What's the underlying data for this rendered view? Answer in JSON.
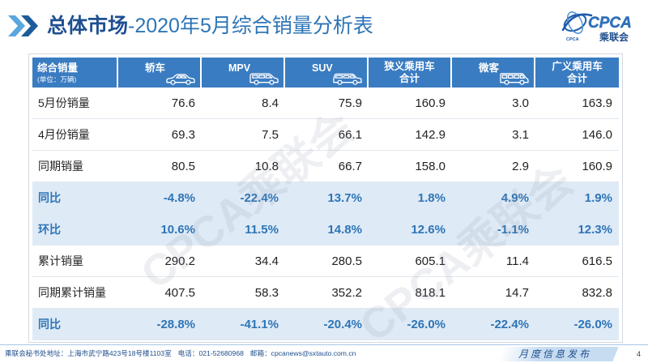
{
  "header": {
    "title_main": "总体市场",
    "title_sub": "-2020年5月综合销量分析表",
    "chevron_icon": "double-chevron-right-icon"
  },
  "logo": {
    "icon": "cpca-globe-icon",
    "name": "CPCA",
    "cn_name": "乘联会",
    "small_text": "CPCA"
  },
  "table": {
    "corner": {
      "label": "综合销量",
      "unit": "(单位：万辆)"
    },
    "columns": [
      {
        "lines": [
          "轿车"
        ],
        "icon": "sedan-icon"
      },
      {
        "lines": [
          "MPV"
        ],
        "icon": "mpv-icon"
      },
      {
        "lines": [
          "SUV"
        ],
        "icon": "suv-icon"
      },
      {
        "lines": [
          "狭义乘用车",
          "合计"
        ],
        "icon": null
      },
      {
        "lines": [
          "微客"
        ],
        "icon": "minivan-icon"
      },
      {
        "lines": [
          "广义乘用车",
          "合计"
        ],
        "icon": null
      }
    ],
    "rows": [
      {
        "label": "5月份销量",
        "highlight": false,
        "values": [
          "76.6",
          "8.4",
          "75.9",
          "160.9",
          "3.0",
          "163.9"
        ]
      },
      {
        "label": "4月份销量",
        "highlight": false,
        "values": [
          "69.3",
          "7.5",
          "66.1",
          "142.9",
          "3.1",
          "146.0"
        ]
      },
      {
        "label": "同期销量",
        "highlight": false,
        "values": [
          "80.5",
          "10.8",
          "66.7",
          "158.0",
          "2.9",
          "160.9"
        ]
      },
      {
        "label": "同比",
        "highlight": true,
        "values": [
          "-4.8%",
          "-22.4%",
          "13.7%",
          "1.8%",
          "4.9%",
          "1.9%"
        ]
      },
      {
        "label": "环比",
        "highlight": true,
        "values": [
          "10.6%",
          "11.5%",
          "14.8%",
          "12.6%",
          "-1.1%",
          "12.3%"
        ]
      },
      {
        "label": "累计销量",
        "highlight": false,
        "values": [
          "290.2",
          "34.4",
          "280.5",
          "605.1",
          "11.4",
          "616.5"
        ]
      },
      {
        "label": "同期累计销量",
        "highlight": false,
        "values": [
          "407.5",
          "58.3",
          "352.2",
          "818.1",
          "14.7",
          "832.8"
        ]
      },
      {
        "label": "同比",
        "highlight": true,
        "values": [
          "-28.8%",
          "-41.1%",
          "-20.4%",
          "-26.0%",
          "-22.4%",
          "-26.0%"
        ]
      }
    ]
  },
  "watermark": "CPCA乘联会",
  "footer": {
    "address": "乘联会秘书处地址：上海市武宁路423号18号楼1103室",
    "phone": "电话：021-52680968",
    "email": "邮箱：cpcanews@sxtauto.com.cn",
    "release": "月度信息发布",
    "page_number": "4"
  },
  "colors": {
    "header_bg": "#3A7CC1",
    "highlight_bg": "#DEEAF6",
    "highlight_text": "#2E75B6",
    "title_dark": "#1E4F91",
    "title_light": "#2E75B6",
    "accent": "#1F4E8C"
  }
}
